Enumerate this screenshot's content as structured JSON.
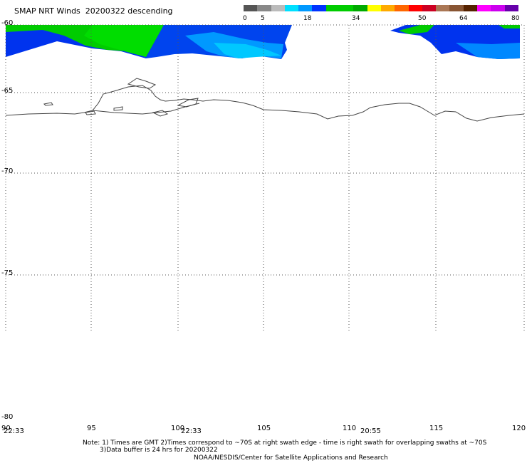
{
  "header": {
    "title": "SMAP NRT Winds  20200322 descending"
  },
  "colorbar": {
    "ticks": [
      "0",
      "5",
      "18",
      "34",
      "50",
      "64",
      "80"
    ],
    "segments": [
      {
        "color": "#555555"
      },
      {
        "color": "#888888"
      },
      {
        "color": "#bbbbbb"
      },
      {
        "color": "#00e0ff"
      },
      {
        "color": "#0099ff"
      },
      {
        "color": "#0033ff"
      },
      {
        "color": "#00cc00"
      },
      {
        "color": "#00cc00"
      },
      {
        "color": "#00aa00"
      },
      {
        "color": "#ffff00"
      },
      {
        "color": "#ffaa00"
      },
      {
        "color": "#ff6600"
      },
      {
        "color": "#ff0000"
      },
      {
        "color": "#cc0022"
      },
      {
        "color": "#aa7755"
      },
      {
        "color": "#885533"
      },
      {
        "color": "#552200"
      },
      {
        "color": "#ff00ff"
      },
      {
        "color": "#cc00ee"
      },
      {
        "color": "#6600aa"
      }
    ]
  },
  "map": {
    "latitudes": [
      "-60",
      "-65",
      "-70",
      "-75",
      "-80"
    ],
    "longitudes": [
      "90",
      "95",
      "100",
      "105",
      "110",
      "115",
      "120"
    ],
    "pass_times": [
      "22:33",
      "22:33",
      "20:55"
    ]
  },
  "footer": {
    "note_line1": "Note: 1) Times are GMT 2)Times correspond to ~70S at right swath edge - time is right swath for overlapping swaths at ~70S",
    "note_line2": "3)Data buffer is 24 hrs for 20200322",
    "credit": "NOAA/NESDIS/Center for Satellite Applications and Research"
  }
}
